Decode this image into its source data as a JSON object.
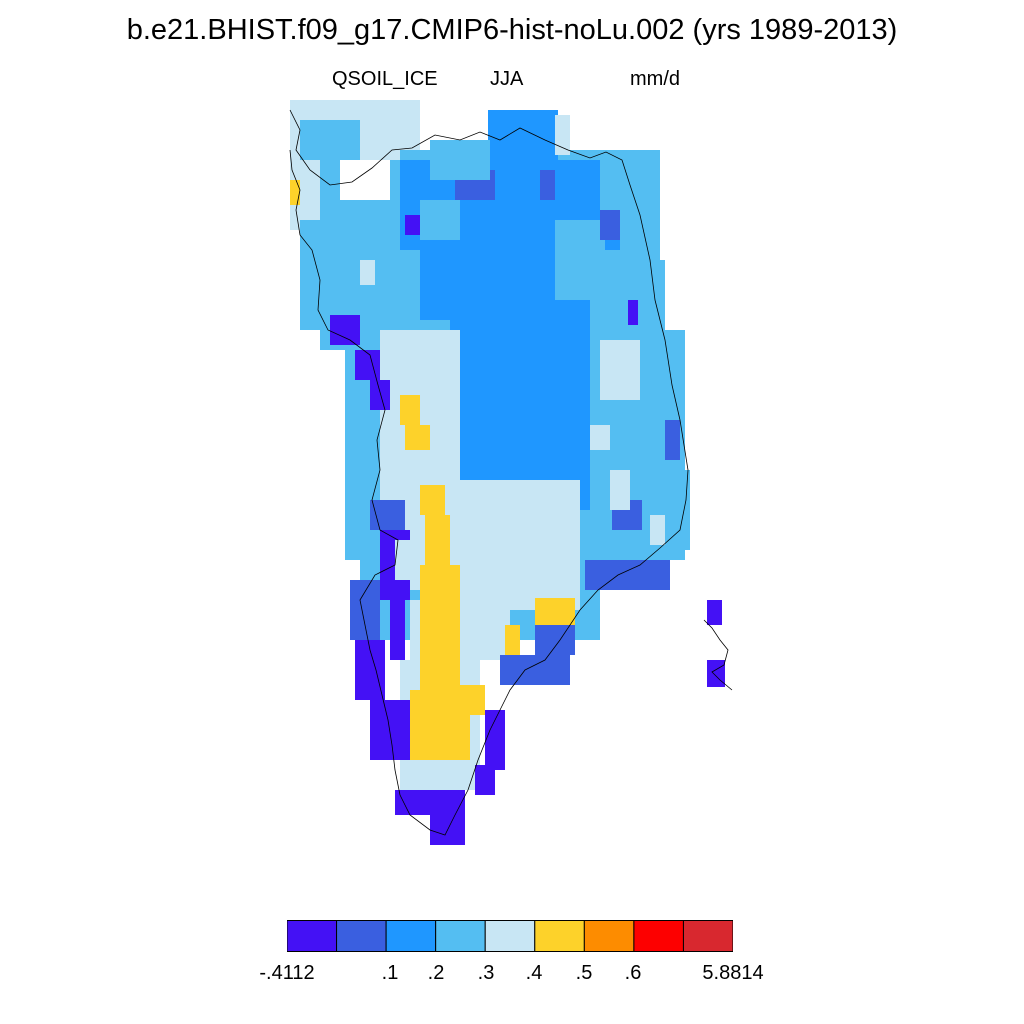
{
  "title": "b.e21.BHIST.f09_g17.CMIP6-hist-noLu.002 (yrs 1989-2013)",
  "subtitle": {
    "left": "QSOIL_ICE",
    "center": "JJA",
    "right": "mm/d"
  },
  "colorbar": {
    "colors": [
      "#4411f5",
      "#3a5fe0",
      "#1f97ff",
      "#54bef2",
      "#c8e6f4",
      "#fdd22a",
      "#fd8c00",
      "#fd0000",
      "#d8282f"
    ],
    "labels": [
      "-.4112",
      ".1",
      ".2",
      ".3",
      ".4",
      ".5",
      ".6",
      "5.8814"
    ]
  },
  "map_data": {
    "variable": "QSOIL_ICE",
    "season": "JJA",
    "units": "mm/d",
    "region": "Greenland"
  }
}
